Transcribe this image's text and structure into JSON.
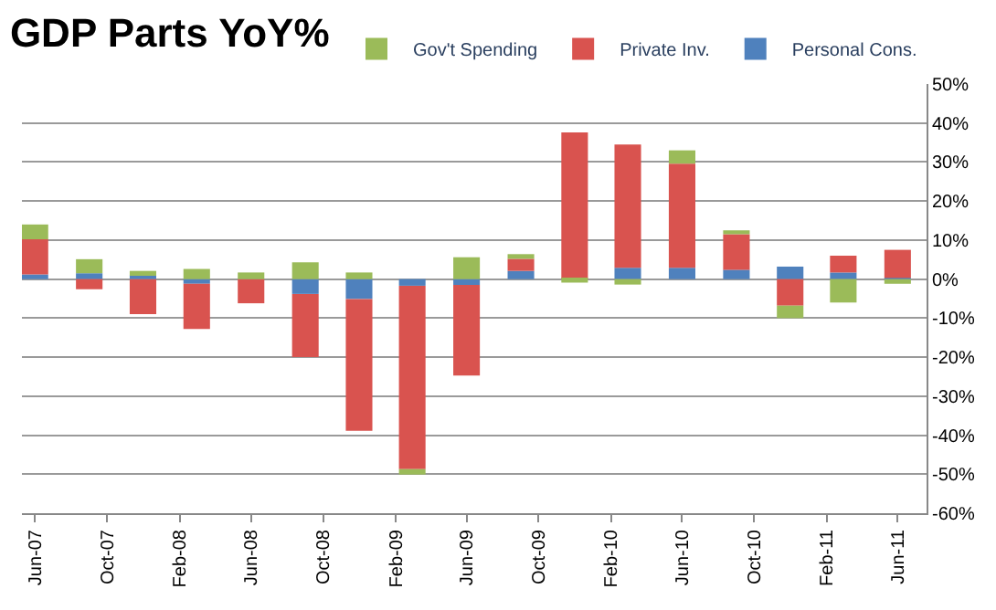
{
  "chart_data": {
    "type": "bar",
    "title": "GDP Parts YoY%",
    "stacked": true,
    "x": [
      "2007-06",
      "2007-09",
      "2007-12",
      "2008-03",
      "2008-06",
      "2008-09",
      "2008-12",
      "2009-03",
      "2009-06",
      "2009-09",
      "2009-12",
      "2010-03",
      "2010-06",
      "2010-09",
      "2010-12",
      "2011-03",
      "2011-06"
    ],
    "series": [
      {
        "name": "Personal Cons.",
        "color": "#4f81bd",
        "values": [
          1.2,
          1.5,
          1.2,
          -1.2,
          null,
          -3.8,
          -5.1,
          -1.7,
          -1.5,
          2.1,
          null,
          2.9,
          2.9,
          2.4,
          3.2,
          1.7,
          0.3
        ]
      },
      {
        "name": "Private Inv.",
        "color": "#d9534f",
        "values": [
          9,
          -2.6,
          -9,
          -11.6,
          -6.2,
          -16.2,
          -33.8,
          -47,
          -23.2,
          3.1,
          37.6,
          31.6,
          26.7,
          9.1,
          -6.8,
          4.3,
          7.2
        ]
      },
      {
        "name": "Gov't Spending",
        "color": "#9bbb59",
        "values": [
          3.8,
          3.6,
          0.9,
          2.6,
          1.7,
          4.3,
          1.7,
          -1.4,
          5.6,
          1.2,
          -0.9,
          -1.4,
          3.4,
          1.0,
          -3.2,
          -6.0,
          -1.2
        ]
      }
    ],
    "xlim": [
      "2007-05-10",
      "2011-07-20"
    ],
    "xticks": [
      {
        "value": "2007-06",
        "label": "Jun-07"
      },
      {
        "value": "2007-10",
        "label": "Oct-07"
      },
      {
        "value": "2008-02",
        "label": "Feb-08"
      },
      {
        "value": "2008-06",
        "label": "Jun-08"
      },
      {
        "value": "2008-10",
        "label": "Oct-08"
      },
      {
        "value": "2009-02",
        "label": "Feb-09"
      },
      {
        "value": "2009-06",
        "label": "Jun-09"
      },
      {
        "value": "2009-10",
        "label": "Oct-09"
      },
      {
        "value": "2010-02",
        "label": "Feb-10"
      },
      {
        "value": "2010-06",
        "label": "Jun-10"
      },
      {
        "value": "2010-10",
        "label": "Oct-10"
      },
      {
        "value": "2011-02",
        "label": "Feb-11"
      },
      {
        "value": "2011-06",
        "label": "Jun-11"
      }
    ],
    "ylim": [
      -60,
      50
    ],
    "yticks": [
      {
        "value": -60,
        "label": "-60%"
      },
      {
        "value": -50,
        "label": "-50%"
      },
      {
        "value": -40,
        "label": "-40%"
      },
      {
        "value": -30,
        "label": "-30%"
      },
      {
        "value": -20,
        "label": "-20%"
      },
      {
        "value": -10,
        "label": "-10%"
      },
      {
        "value": 0,
        "label": "0%"
      },
      {
        "value": 10,
        "label": "10%"
      },
      {
        "value": 20,
        "label": "20%"
      },
      {
        "value": 30,
        "label": "30%"
      },
      {
        "value": 40,
        "label": "40%"
      },
      {
        "value": 50,
        "label": "50%"
      }
    ],
    "grid": "y",
    "legend": "top right"
  }
}
